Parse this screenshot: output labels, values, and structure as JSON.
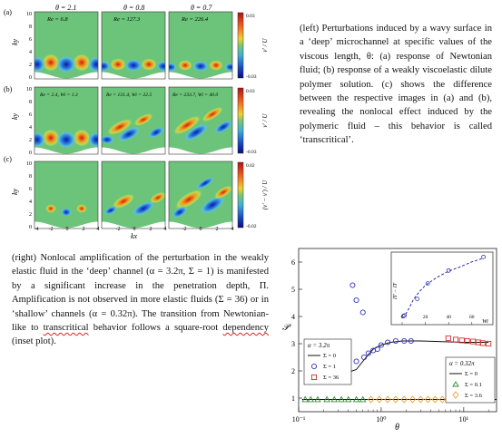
{
  "left_figure": {
    "row_labels": [
      "(a)",
      "(b)",
      "(c)"
    ],
    "column_titles": [
      "θ = 2.1",
      "θ = 0.8",
      "θ = 0.7"
    ],
    "panel_annotations": {
      "a": [
        "Re = 6.8",
        "Re = 127.3",
        "Re = 226.4"
      ],
      "b": [
        "Re = 2.4, Wi = 1.3",
        "Re = 131.4, Wi = 22.5",
        "Re = 233.7, Wi = 40.0"
      ]
    },
    "y_axis_label": "ky",
    "y_ticks": [
      "10",
      "8",
      "6",
      "4",
      "2",
      "0"
    ],
    "x_axis_label": "kx",
    "x_ticks": [
      "-4",
      "-2",
      "0",
      "2",
      "4"
    ],
    "colorbars": [
      {
        "max": "0.03",
        "min": "-0.03",
        "label": "v′ / U"
      },
      {
        "max": "0.03",
        "min": "-0.03",
        "label": "v′ / U"
      },
      {
        "max": "0.02",
        "min": "-0.02",
        "label": "(v′ − v′) / U"
      }
    ]
  },
  "caption_left": {
    "text": "(left) Perturbations induced by a wavy surface in a ‘deep’ microchannel at specific values of the viscous length, θ: (a) response of Newtonian fluid; (b) response of a weakly viscoelastic dilute polymer solution. (c) shows the difference between the respective images in (a) and (b), revealing the nonlocal effect induced by the polymeric fluid – this behavior is called ",
    "emphasis": "‘transcritical’",
    "end": "."
  },
  "caption_right": {
    "text_before": "(right) Nonlocal amplification of the perturbation in the weakly elastic fluid in the ‘deep’ channel (α = 3.2π, Σ = 1) is manifested by a significant increase in the penetration depth, Π. Amplification is not observed in more elastic fluids (Σ = 36) or in ‘shallow’ channels (α = 0.32π). The transition from Newtonian-like to ",
    "emphasis": "transcritical",
    "text_after": " behavior follows a square-root ",
    "emphasis2": "dependency",
    "end": " (inset plot)."
  },
  "chart_data": {
    "type": "scatter",
    "xlabel": "θ",
    "ylabel": "𝒫",
    "xscale": "log",
    "xlim": [
      0.1,
      25
    ],
    "ylim": [
      0.5,
      6.5
    ],
    "x_ticks": [
      "10⁻¹",
      "10⁰",
      "10¹"
    ],
    "y_ticks": [
      "1",
      "2",
      "3",
      "4",
      "5",
      "6"
    ],
    "legend_deep": {
      "title": "α = 3.2π",
      "entries": [
        "Σ = 0",
        "Σ = 1",
        "Σ = 36"
      ],
      "placement": "middle-left"
    },
    "legend_shallow": {
      "title": "α = 0.32π",
      "entries": [
        "Σ = 0",
        "Σ = 0.1",
        "Σ = 3.6"
      ],
      "placement": "bottom-right"
    },
    "series": [
      {
        "name": "Σ = 0",
        "style": "line",
        "color": "#111111",
        "points": [
          [
            0.4,
            1.95
          ],
          [
            0.5,
            2.05
          ],
          [
            0.6,
            2.35
          ],
          [
            0.7,
            2.6
          ],
          [
            0.8,
            2.8
          ],
          [
            1.0,
            2.95
          ],
          [
            1.3,
            3.05
          ],
          [
            1.8,
            3.1
          ],
          [
            3,
            3.1
          ],
          [
            5,
            3.08
          ],
          [
            10,
            3.05
          ],
          [
            20,
            3.05
          ]
        ]
      },
      {
        "name": "Σ = 1",
        "style": "circle",
        "color": "#3030c0",
        "points": [
          [
            0.45,
            5.15
          ],
          [
            0.5,
            4.6
          ],
          [
            0.6,
            4.15
          ],
          [
            0.5,
            2.35
          ],
          [
            0.62,
            2.5
          ],
          [
            0.7,
            2.65
          ],
          [
            0.8,
            2.75
          ],
          [
            0.9,
            2.8
          ],
          [
            1.0,
            2.95
          ],
          [
            1.2,
            3.05
          ],
          [
            1.5,
            3.1
          ],
          [
            1.9,
            3.1
          ],
          [
            2.3,
            3.1
          ]
        ]
      },
      {
        "name": "Σ = 36",
        "style": "square",
        "color": "#d03030",
        "points": [
          [
            6.5,
            3.2
          ],
          [
            8,
            3.15
          ],
          [
            9.5,
            3.12
          ],
          [
            11,
            3.1
          ],
          [
            13,
            3.08
          ],
          [
            15,
            3.05
          ],
          [
            17,
            3.02
          ],
          [
            20,
            3.0
          ]
        ]
      },
      {
        "name": "Σ = 0 (α = 0.32π)",
        "style": "line",
        "color": "#111111",
        "points": [
          [
            0.11,
            0.95
          ],
          [
            1,
            0.95
          ],
          [
            25,
            0.95
          ]
        ]
      },
      {
        "name": "Σ = 0.1",
        "style": "triangle",
        "color": "#2e8b2e",
        "points": [
          [
            0.12,
            0.95
          ],
          [
            0.14,
            0.95
          ],
          [
            0.17,
            0.95
          ],
          [
            0.22,
            0.95
          ],
          [
            0.27,
            0.95
          ],
          [
            0.33,
            0.95
          ],
          [
            0.4,
            0.95
          ],
          [
            0.5,
            0.95
          ],
          [
            0.6,
            0.95
          ]
        ]
      },
      {
        "name": "Σ = 3.6",
        "style": "diamond",
        "color": "#e8a030",
        "points": [
          [
            0.75,
            0.95
          ],
          [
            0.95,
            0.95
          ],
          [
            1.2,
            0.95
          ],
          [
            1.5,
            0.95
          ],
          [
            1.9,
            0.95
          ],
          [
            2.4,
            0.95
          ],
          [
            3.0,
            0.95
          ],
          [
            3.7,
            0.95
          ],
          [
            4.5,
            0.95
          ],
          [
            5.5,
            0.95
          ]
        ]
      }
    ],
    "inset": {
      "xlabel": "Wi",
      "ylabel": "Π′ − Π′",
      "x_ticks": [
        "0",
        "20",
        "40",
        "60"
      ],
      "xlim": [
        0,
        75
      ],
      "ylim": [
        0,
        1
      ],
      "series": [
        {
          "name": "fit",
          "style": "dashed",
          "color": "#1a1aa0",
          "points": [
            [
              3,
              0.05
            ],
            [
              6,
              0.15
            ],
            [
              10,
              0.3
            ],
            [
              15,
              0.42
            ],
            [
              20,
              0.52
            ],
            [
              30,
              0.65
            ],
            [
              40,
              0.75
            ],
            [
              50,
              0.82
            ],
            [
              60,
              0.9
            ],
            [
              70,
              0.96
            ]
          ]
        },
        {
          "name": "data",
          "style": "circle",
          "color": "#3030c0",
          "points": [
            [
              1,
              0.02
            ],
            [
              2,
              0.03
            ],
            [
              13,
              0.3
            ],
            [
              22,
              0.55
            ],
            [
              40,
              0.76
            ],
            [
              70,
              0.98
            ]
          ]
        }
      ]
    }
  }
}
